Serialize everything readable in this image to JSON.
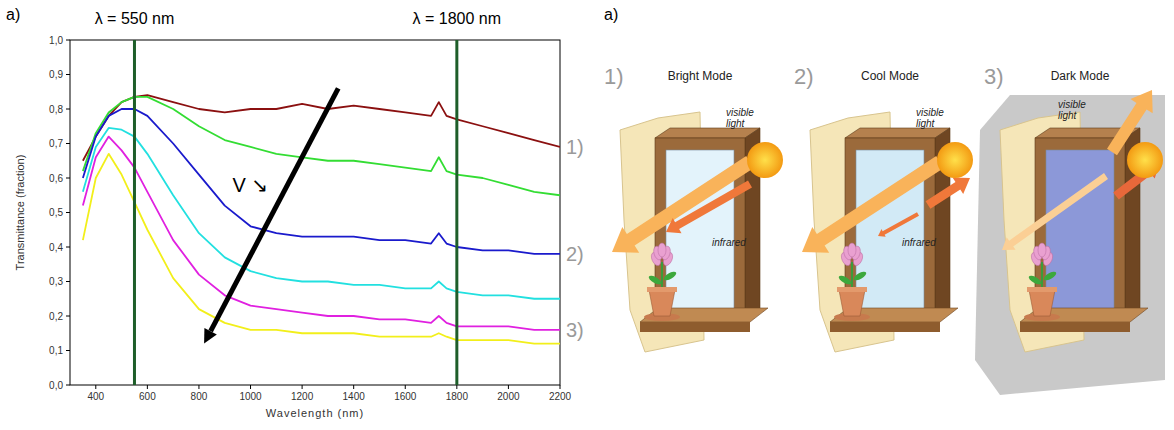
{
  "chart_data": {
    "type": "line",
    "x_label": "Wavelength (nm)",
    "y_label": "Transmittance (fraction)",
    "x": [
      350,
      400,
      450,
      500,
      550,
      600,
      700,
      800,
      900,
      1000,
      1100,
      1200,
      1300,
      1400,
      1500,
      1600,
      1700,
      1730,
      1760,
      1800,
      1900,
      2000,
      2100,
      2200
    ],
    "xlim": [
      300,
      2200
    ],
    "ylim": [
      0,
      1
    ],
    "xticks": [
      400,
      600,
      800,
      1000,
      1200,
      1400,
      1600,
      1800,
      2000,
      2200
    ],
    "yticks": [
      {
        "value": 0,
        "label": "0,0"
      },
      {
        "value": 0.1,
        "label": "0,1"
      },
      {
        "value": 0.2,
        "label": "0,2"
      },
      {
        "value": 0.3,
        "label": "0,3"
      },
      {
        "value": 0.4,
        "label": "0,4"
      },
      {
        "value": 0.5,
        "label": "0,5"
      },
      {
        "value": 0.6,
        "label": "0,6"
      },
      {
        "value": 0.7,
        "label": "0,7"
      },
      {
        "value": 0.8,
        "label": "0,8"
      },
      {
        "value": 0.9,
        "label": "0,9"
      },
      {
        "value": 1,
        "label": "1,0"
      }
    ],
    "grid": false,
    "series": [
      {
        "color": "#8b1010",
        "values": [
          0.65,
          0.72,
          0.78,
          0.82,
          0.835,
          0.84,
          0.82,
          0.8,
          0.79,
          0.8,
          0.8,
          0.815,
          0.8,
          0.81,
          0.8,
          0.79,
          0.78,
          0.82,
          0.78,
          0.77,
          0.75,
          0.73,
          0.71,
          0.69
        ]
      },
      {
        "color": "#33dd33",
        "values": [
          0.62,
          0.73,
          0.79,
          0.82,
          0.835,
          0.835,
          0.8,
          0.75,
          0.71,
          0.69,
          0.67,
          0.66,
          0.65,
          0.65,
          0.64,
          0.63,
          0.62,
          0.66,
          0.62,
          0.61,
          0.6,
          0.58,
          0.56,
          0.55
        ]
      },
      {
        "color": "#1a1acc",
        "values": [
          0.6,
          0.72,
          0.78,
          0.8,
          0.8,
          0.78,
          0.7,
          0.61,
          0.52,
          0.46,
          0.44,
          0.43,
          0.43,
          0.43,
          0.42,
          0.42,
          0.41,
          0.44,
          0.41,
          0.4,
          0.39,
          0.39,
          0.38,
          0.38
        ]
      },
      {
        "color": "#22e0e0",
        "values": [
          0.56,
          0.69,
          0.745,
          0.74,
          0.72,
          0.67,
          0.55,
          0.44,
          0.37,
          0.33,
          0.31,
          0.3,
          0.3,
          0.29,
          0.29,
          0.28,
          0.28,
          0.3,
          0.28,
          0.27,
          0.26,
          0.26,
          0.25,
          0.25
        ]
      },
      {
        "color": "#e020e0",
        "values": [
          0.52,
          0.66,
          0.72,
          0.68,
          0.63,
          0.56,
          0.42,
          0.32,
          0.26,
          0.23,
          0.22,
          0.21,
          0.2,
          0.2,
          0.19,
          0.19,
          0.18,
          0.2,
          0.18,
          0.17,
          0.17,
          0.17,
          0.16,
          0.16
        ]
      },
      {
        "color": "#f2ef1a",
        "values": [
          0.42,
          0.6,
          0.67,
          0.61,
          0.53,
          0.45,
          0.31,
          0.22,
          0.18,
          0.16,
          0.16,
          0.15,
          0.15,
          0.15,
          0.14,
          0.14,
          0.14,
          0.15,
          0.14,
          0.13,
          0.13,
          0.13,
          0.12,
          0.12
        ]
      }
    ],
    "reference_lines": [
      {
        "x": 550,
        "label": "λ = 550 nm",
        "color": "#1e5e2a"
      },
      {
        "x": 1800,
        "label": "λ = 1800 nm",
        "color": "#1e5e2a"
      }
    ],
    "annotations": [
      {
        "text": "1)",
        "x": 2200,
        "y": 0.69
      },
      {
        "text": "2)",
        "x": 2200,
        "y": 0.38
      },
      {
        "text": "3)",
        "x": 2200,
        "y": 0.16
      },
      {
        "text": "V ↘",
        "x": 930,
        "y": 0.56
      }
    ],
    "arrow": {
      "from": [
        1340,
        0.86
      ],
      "to": [
        820,
        0.12
      ]
    }
  },
  "panel_labels": [
    "a)",
    "a)"
  ],
  "diagram": {
    "panels": [
      {
        "number": "1)",
        "title": "Bright Mode",
        "visible": "visible light",
        "infrared": "infrared"
      },
      {
        "number": "2)",
        "title": "Cool Mode",
        "visible": "visible light",
        "infrared": "infrared"
      },
      {
        "number": "3)",
        "title": "Dark Mode",
        "visible": "visible light"
      }
    ]
  }
}
